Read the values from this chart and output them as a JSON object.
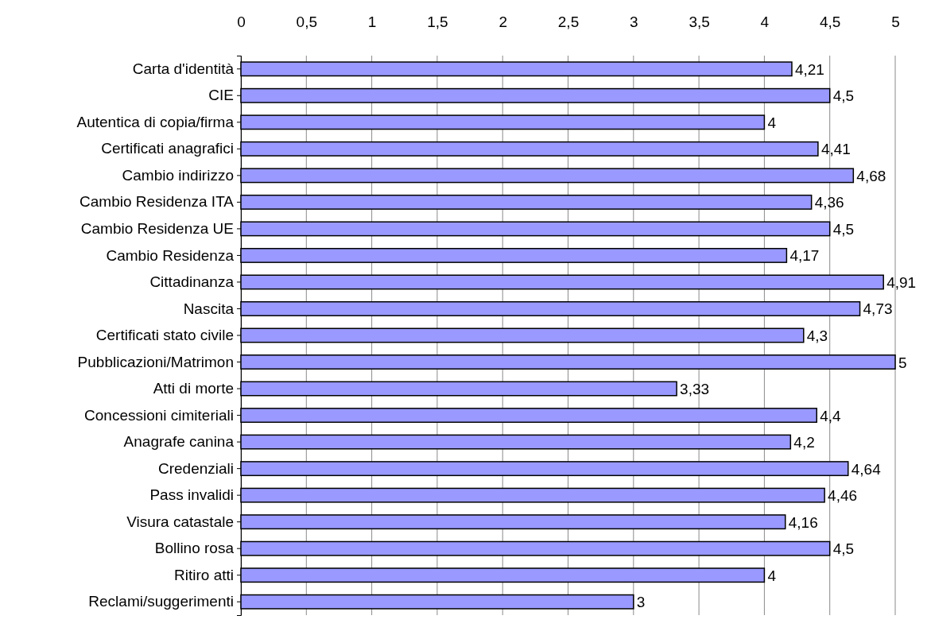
{
  "chart_data": {
    "type": "bar",
    "orientation": "horizontal",
    "categories": [
      "Carta d'identità",
      "CIE",
      "Autentica di copia/firma",
      "Certificati anagrafici",
      "Cambio indirizzo",
      "Cambio Residenza ITA",
      "Cambio Residenza UE",
      "Cambio Residenza",
      "Cittadinanza",
      "Nascita",
      "Certificati stato civile",
      "Pubblicazioni/Matrimon",
      "Atti di morte",
      "Concessioni cimiteriali",
      "Anagrafe canina",
      "Credenziali",
      "Pass invalidi",
      "Visura catastale",
      "Bollino rosa",
      "Ritiro atti",
      "Reclami/suggerimenti"
    ],
    "values": [
      4.21,
      4.5,
      4,
      4.41,
      4.68,
      4.36,
      4.5,
      4.17,
      4.91,
      4.73,
      4.3,
      5,
      3.33,
      4.4,
      4.2,
      4.64,
      4.46,
      4.16,
      4.5,
      4,
      3
    ],
    "value_labels": [
      "4,21",
      "4,5",
      "4",
      "4,41",
      "4,68",
      "4,36",
      "4,5",
      "4,17",
      "4,91",
      "4,73",
      "4,3",
      "5",
      "3,33",
      "4,4",
      "4,2",
      "4,64",
      "4,46",
      "4,16",
      "4,5",
      "4",
      "3"
    ],
    "color": "#9999ff",
    "xlim": [
      0,
      5
    ],
    "xticks": [
      0,
      {
        "value": 0.5,
        "label": "0,5"
      },
      1,
      {
        "value": 1.5,
        "label": "1,5"
      },
      2,
      {
        "value": 2.5,
        "label": "2,5"
      },
      3,
      {
        "value": 3.5,
        "label": "3,5"
      },
      4,
      {
        "value": 4.5,
        "label": "4,5"
      },
      5
    ],
    "grid": "x"
  }
}
